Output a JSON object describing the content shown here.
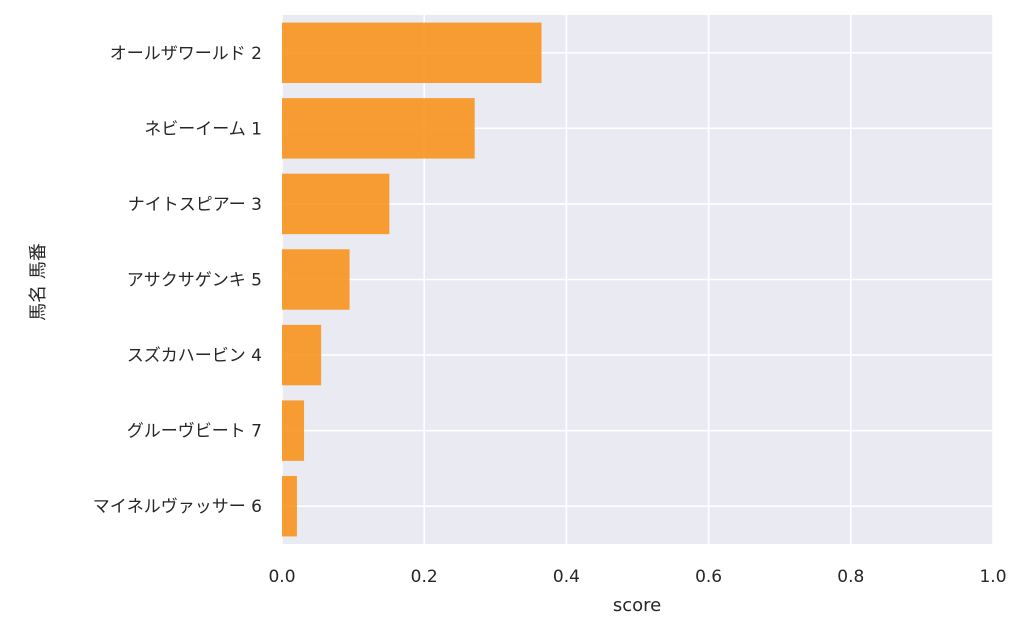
{
  "chart_data": {
    "type": "bar",
    "orientation": "horizontal",
    "categories": [
      "オールザワールド 2",
      "ネビーイーム 1",
      "ナイトスピアー 3",
      "アサクサゲンキ 5",
      "スズカハービン 4",
      "グルーヴビート 7",
      "マイネルヴァッサー 6"
    ],
    "values": [
      0.365,
      0.271,
      0.151,
      0.095,
      0.055,
      0.031,
      0.021
    ],
    "xlabel": "score",
    "ylabel": "馬名 馬番",
    "xlim": [
      0,
      1.0
    ],
    "xticks": [
      "0.0",
      "0.2",
      "0.4",
      "0.6",
      "0.8",
      "1.0"
    ],
    "grid": true,
    "colors": {
      "bar": "#f7931e",
      "plot_background": "#eaeaf2",
      "grid": "#ffffff"
    }
  }
}
